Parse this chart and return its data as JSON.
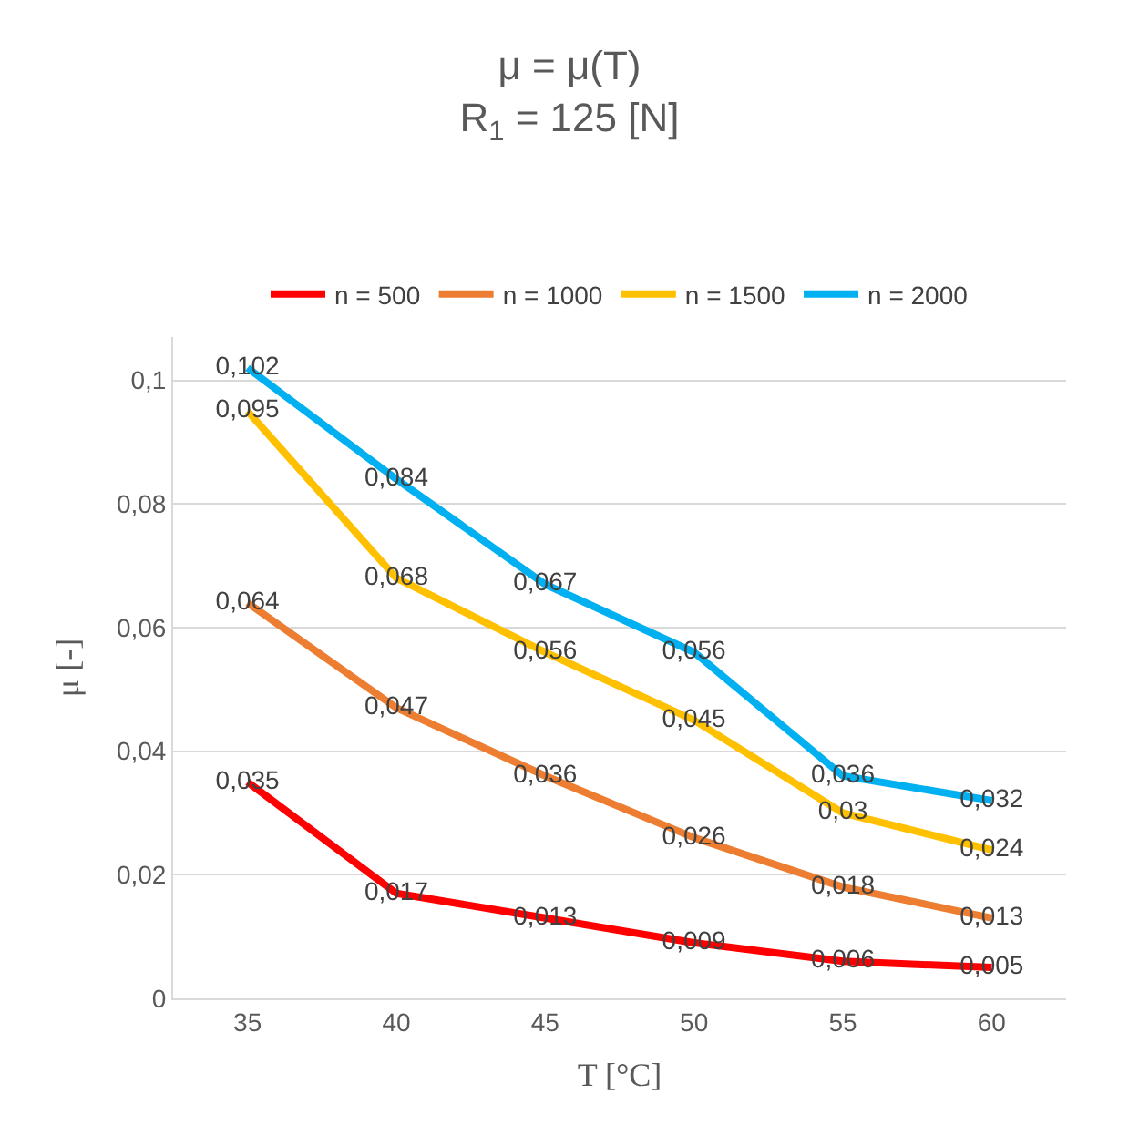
{
  "chart_data": {
    "type": "line",
    "title": "μ = μ(T)\nR$_{1}$ = 125 [N]",
    "xlabel": "T [°C]",
    "ylabel": "μ [-]",
    "categories": [
      "35",
      "40",
      "45",
      "50",
      "55",
      "60"
    ],
    "series": [
      {
        "name": "n = 500",
        "color": "#ff0000",
        "values": [
          0.035,
          0.017,
          0.013,
          0.009,
          0.006,
          0.005
        ],
        "value_labels": [
          "0,035",
          "0,017",
          "0,013",
          "0,009",
          "0,006",
          "0,005"
        ]
      },
      {
        "name": "n = 1000",
        "color": "#ed7d31",
        "values": [
          0.064,
          0.047,
          0.036,
          0.026,
          0.018,
          0.013
        ],
        "value_labels": [
          "0,064",
          "0,047",
          "0,036",
          "0,026",
          "0,018",
          "0,013"
        ]
      },
      {
        "name": "n = 1500",
        "color": "#ffc000",
        "values": [
          0.095,
          0.068,
          0.056,
          0.045,
          0.03,
          0.024
        ],
        "value_labels": [
          "0,095",
          "0,068",
          "0,056",
          "0,045",
          "0,03",
          "0,024"
        ]
      },
      {
        "name": "n = 2000",
        "color": "#00b0f0",
        "values": [
          0.102,
          0.084,
          0.067,
          0.056,
          0.036,
          0.032
        ],
        "value_labels": [
          "0,102",
          "0,084",
          "0,067",
          "0,056",
          "0,036",
          "0,032"
        ]
      }
    ],
    "ylim": [
      0,
      0.107
    ],
    "yticks": [
      0,
      {
        "value": 0.02,
        "label": "0,02"
      },
      {
        "value": 0.04,
        "label": "0,04"
      },
      {
        "value": 0.06,
        "label": "0,06"
      },
      {
        "value": 0.08,
        "label": "0,08"
      },
      {
        "value": 0.1,
        "label": "0,1"
      }
    ],
    "grid": "y",
    "legend": "top",
    "marker": "none",
    "line_style": "solid"
  }
}
